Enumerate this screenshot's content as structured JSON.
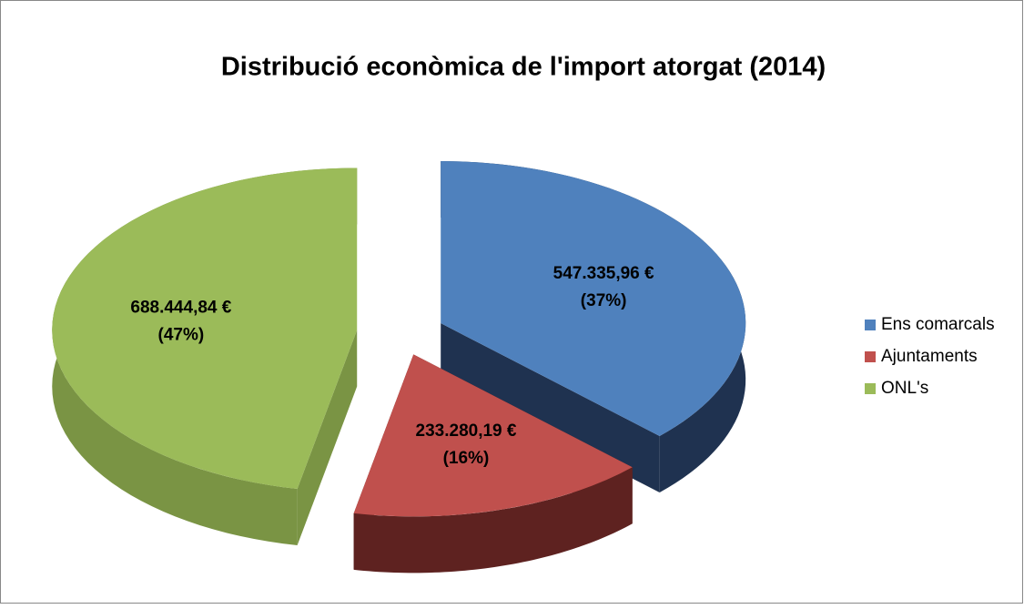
{
  "chart_data": {
    "type": "pie3d",
    "title": "Distribució econòmica de l'import atorgat (2014)",
    "categories": [
      "Ens comarcals",
      "Ajuntaments",
      "ONL's"
    ],
    "values": [
      547335.96,
      233280.19,
      688444.84
    ],
    "value_labels": [
      "547.335,96 €",
      "233.280,19 €",
      "688.444,84 €"
    ],
    "percent_labels": [
      "(37%)",
      "(16%)",
      "(47%)"
    ],
    "colors": [
      "#4f81bd",
      "#c0504d",
      "#9bbb59"
    ],
    "side_colors": [
      "#1f3250",
      "#5e2220",
      "#7a9444"
    ],
    "legend": "right"
  }
}
